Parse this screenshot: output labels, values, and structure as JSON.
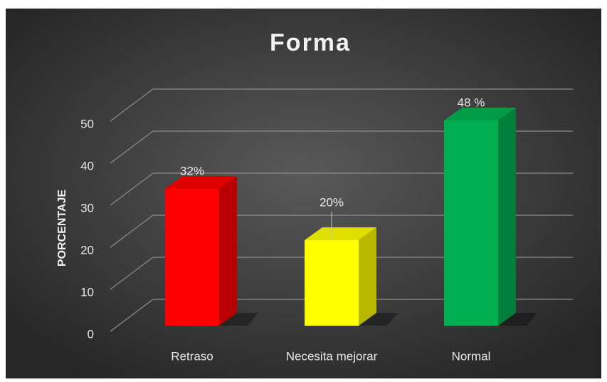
{
  "chart_data": {
    "type": "bar3d",
    "title": "Forma",
    "y_label": "PORCENTAJE",
    "categories": [
      "Retraso",
      "Necesita mejorar",
      "Normal"
    ],
    "values": [
      32,
      20,
      48
    ],
    "value_labels": [
      "32%",
      "20%",
      "48 %"
    ],
    "colors": [
      "#ff0000",
      "#ffff00",
      "#00b050"
    ],
    "ylim": [
      0,
      50
    ],
    "yticks": [
      0,
      10,
      20,
      30,
      40,
      50
    ],
    "grid": true
  }
}
